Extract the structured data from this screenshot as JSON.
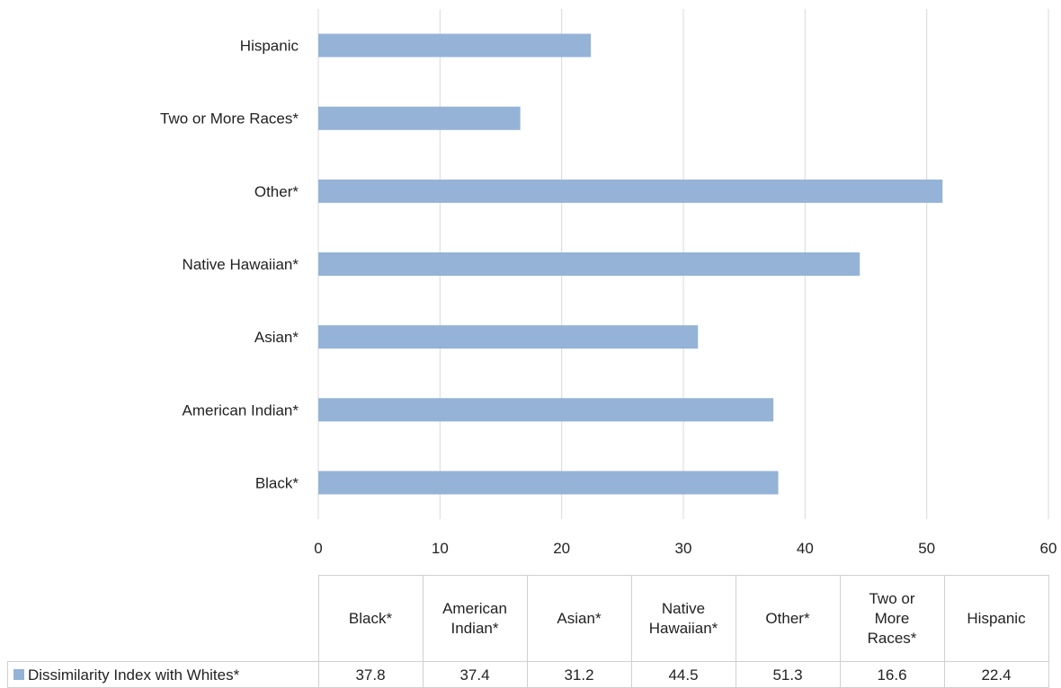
{
  "chart_data": {
    "type": "bar",
    "orientation": "horizontal",
    "categories": [
      "Black*",
      "American Indian*",
      "Asian*",
      "Native Hawaiian*",
      "Other*",
      "Two or More Races*",
      "Hispanic"
    ],
    "table_headers": [
      [
        "Black*"
      ],
      [
        "American",
        "Indian*"
      ],
      [
        "Asian*"
      ],
      [
        "Native",
        "Hawaiian*"
      ],
      [
        "Other*"
      ],
      [
        "Two or",
        "More",
        "Races*"
      ],
      [
        "Hispanic"
      ]
    ],
    "series": [
      {
        "name": "Dissimilarity Index with Whites*",
        "values": [
          37.8,
          37.4,
          31.2,
          44.5,
          51.3,
          16.6,
          22.4
        ],
        "color": "#95b3d7"
      }
    ],
    "value_labels": [
      "37.8",
      "37.4",
      "31.2",
      "44.5",
      "51.3",
      "16.6",
      "22.4"
    ],
    "xlim": [
      0,
      60
    ],
    "x_ticks": [
      0,
      10,
      20,
      30,
      40,
      50,
      60
    ],
    "grid": true,
    "legend": "data-table",
    "gridline_color": "#d9d9d9",
    "table_border_color": "#d0d0d0"
  }
}
